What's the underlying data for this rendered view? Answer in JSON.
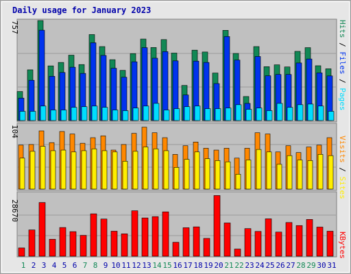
{
  "chart_data": [
    {
      "type": "bar",
      "title": "Daily usage for January 2023",
      "ymax_label": "757",
      "series": [
        {
          "name": "Hits",
          "values": [
            220,
            384,
            757,
            414,
            440,
            495,
            424,
            651,
            560,
            461,
            380,
            507,
            617,
            553,
            613,
            511,
            266,
            533,
            519,
            360,
            683,
            508,
            182,
            560,
            408,
            422,
            406,
            524,
            552,
            415,
            392
          ]
        },
        {
          "name": "Files",
          "values": [
            170,
            305,
            684,
            335,
            364,
            404,
            357,
            589,
            493,
            396,
            328,
            445,
            552,
            472,
            522,
            452,
            194,
            450,
            440,
            280,
            636,
            458,
            130,
            485,
            339,
            349,
            349,
            436,
            466,
            361,
            338
          ]
        },
        {
          "name": "Pages",
          "values": [
            70,
            70,
            110,
            80,
            80,
            100,
            105,
            110,
            100,
            80,
            75,
            95,
            110,
            130,
            80,
            90,
            105,
            110,
            90,
            90,
            95,
            120,
            85,
            95,
            75,
            130,
            100,
            120,
            125,
            110,
            70
          ]
        }
      ]
    },
    {
      "type": "bar",
      "ymax_label": "104",
      "series": [
        {
          "name": "Visits",
          "values": [
            71,
            72,
            94,
            75,
            93,
            89,
            74,
            83,
            86,
            63,
            72,
            90,
            100,
            91,
            83,
            56,
            70,
            76,
            66,
            63,
            66,
            50,
            66,
            91,
            89,
            60,
            70,
            59,
            68,
            71,
            83
          ]
        },
        {
          "name": "Sites",
          "values": [
            50,
            61,
            69,
            62,
            63,
            60,
            62,
            65,
            62,
            60,
            45,
            61,
            68,
            65,
            62,
            35,
            48,
            60,
            49,
            46,
            44,
            24,
            47,
            64,
            60,
            40,
            54,
            47,
            46,
            56,
            54
          ]
        }
      ]
    },
    {
      "type": "bar",
      "ymax_label": "28670",
      "series": [
        {
          "name": "KBytes",
          "values": [
            3800,
            12100,
            24700,
            7800,
            13200,
            11300,
            9600,
            19500,
            17100,
            11500,
            10300,
            20900,
            17600,
            18200,
            20400,
            6400,
            13100,
            13500,
            8200,
            27900,
            15300,
            3300,
            12700,
            11400,
            17200,
            11100,
            15500,
            14100,
            16900,
            13400,
            11500
          ]
        }
      ]
    }
  ],
  "days": [
    "1",
    "2",
    "3",
    "4",
    "5",
    "6",
    "7",
    "8",
    "9",
    "10",
    "11",
    "12",
    "13",
    "14",
    "15",
    "16",
    "17",
    "18",
    "19",
    "20",
    "21",
    "22",
    "23",
    "24",
    "25",
    "26",
    "27",
    "28",
    "29",
    "30",
    "31"
  ],
  "weekend_days": [
    "1",
    "7",
    "8",
    "14",
    "15",
    "21",
    "22",
    "28",
    "29"
  ],
  "legend": {
    "pages": "Pages",
    "files": "Files",
    "hits": "Hits",
    "sites": "Sites",
    "visits": "Visits",
    "kbytes": "KBytes",
    "sep": " / "
  },
  "colors": {
    "hits": "#118855",
    "files": "#0033ee",
    "pages": "#00ddff",
    "visits": "#ff8800",
    "sites": "#ffee00",
    "kbytes": "#ff0000",
    "title": "#0000aa",
    "weekend": "#118855",
    "panel": "#c0c0c0"
  }
}
